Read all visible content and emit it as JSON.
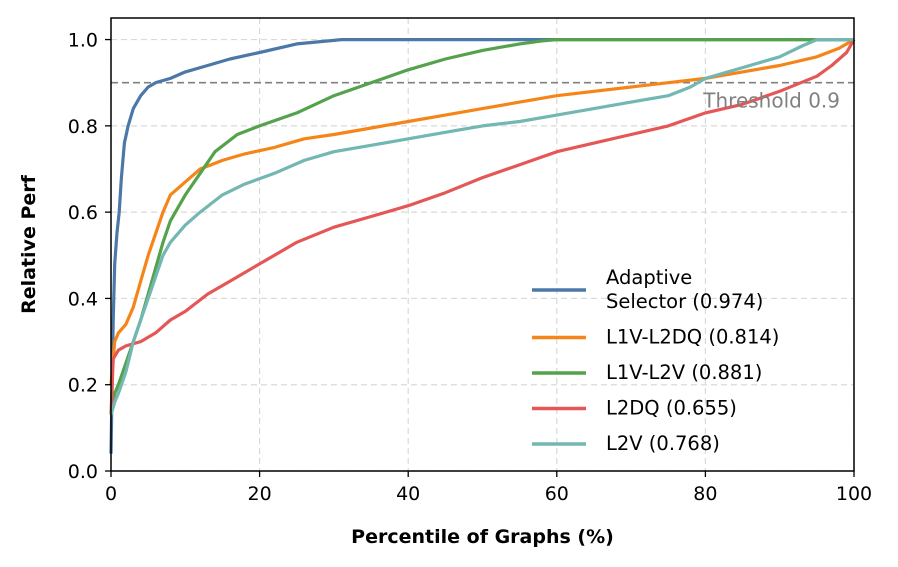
{
  "chart_data": {
    "type": "line",
    "title": "",
    "xlabel": "Percentile of Graphs (%)",
    "ylabel": "Relative Perf",
    "xlim": [
      0,
      100
    ],
    "ylim": [
      0,
      1.05
    ],
    "x_ticks": [
      0,
      20,
      40,
      60,
      80,
      100
    ],
    "x_tick_labels": [
      "0",
      "20",
      "40",
      "60",
      "80",
      "100"
    ],
    "y_ticks": [
      0,
      0.2,
      0.4,
      0.6,
      0.8,
      1.0
    ],
    "y_tick_labels": [
      "0.0",
      "0.2",
      "0.4",
      "0.6",
      "0.8",
      "1.0"
    ],
    "grid": true,
    "legend_position": "lower-right",
    "threshold": {
      "value": 0.9,
      "label": "Threshold 0.9",
      "color": "#808080"
    },
    "series": [
      {
        "name": "Adaptive Selector (0.974)",
        "legend_lines": [
          "Adaptive",
          "Selector (0.974)"
        ],
        "color": "#4c78a8",
        "x": [
          0,
          0.3,
          0.5,
          0.8,
          1.1,
          1.4,
          1.8,
          2.3,
          3,
          4,
          5,
          6,
          8,
          10,
          13,
          16,
          20,
          25,
          30,
          31,
          100
        ],
        "y": [
          0.04,
          0.35,
          0.48,
          0.55,
          0.6,
          0.68,
          0.76,
          0.8,
          0.84,
          0.87,
          0.89,
          0.9,
          0.91,
          0.925,
          0.94,
          0.955,
          0.97,
          0.99,
          0.998,
          1.0,
          1.0
        ]
      },
      {
        "name": "L1V-L2DQ (0.814)",
        "legend_lines": [
          "L1V-L2DQ (0.814)"
        ],
        "color": "#f58518",
        "x": [
          0,
          0.5,
          1,
          2,
          3,
          4,
          5,
          6,
          7,
          8,
          10,
          12,
          15,
          18,
          22,
          26,
          30,
          35,
          40,
          45,
          50,
          55,
          60,
          65,
          70,
          75,
          80,
          85,
          90,
          95,
          98,
          100
        ],
        "y": [
          0.2,
          0.3,
          0.32,
          0.34,
          0.38,
          0.44,
          0.5,
          0.55,
          0.6,
          0.64,
          0.67,
          0.7,
          0.72,
          0.735,
          0.75,
          0.77,
          0.78,
          0.795,
          0.81,
          0.825,
          0.84,
          0.855,
          0.87,
          0.88,
          0.89,
          0.9,
          0.91,
          0.925,
          0.94,
          0.96,
          0.98,
          1.0
        ]
      },
      {
        "name": "L1V-L2V (0.881)",
        "legend_lines": [
          "L1V-L2V (0.881)"
        ],
        "color": "#54a24b",
        "x": [
          0,
          0.5,
          1,
          2,
          3,
          4,
          5,
          6,
          7,
          8,
          9,
          10,
          12,
          14,
          17,
          20,
          25,
          30,
          35,
          40,
          45,
          50,
          55,
          58,
          60,
          100
        ],
        "y": [
          0.13,
          0.18,
          0.2,
          0.25,
          0.3,
          0.35,
          0.41,
          0.47,
          0.53,
          0.58,
          0.61,
          0.64,
          0.69,
          0.74,
          0.78,
          0.8,
          0.83,
          0.87,
          0.9,
          0.93,
          0.955,
          0.975,
          0.99,
          0.997,
          1.0,
          1.0
        ]
      },
      {
        "name": "L2DQ (0.655)",
        "legend_lines": [
          "L2DQ (0.655)"
        ],
        "color": "#e45756",
        "x": [
          0,
          0.3,
          1,
          2,
          4,
          6,
          8,
          10,
          13,
          16,
          20,
          25,
          30,
          35,
          40,
          45,
          50,
          55,
          60,
          65,
          70,
          75,
          80,
          85,
          90,
          95,
          97,
          99,
          100
        ],
        "y": [
          0.13,
          0.26,
          0.28,
          0.29,
          0.3,
          0.32,
          0.35,
          0.37,
          0.41,
          0.44,
          0.48,
          0.53,
          0.565,
          0.59,
          0.615,
          0.645,
          0.68,
          0.71,
          0.74,
          0.76,
          0.78,
          0.8,
          0.83,
          0.85,
          0.88,
          0.915,
          0.94,
          0.97,
          1.0
        ]
      },
      {
        "name": "L2V (0.768)",
        "legend_lines": [
          "L2V (0.768)"
        ],
        "color": "#72b7b2",
        "x": [
          0,
          0.5,
          1,
          2,
          3,
          4,
          5,
          6,
          7,
          8,
          10,
          12,
          15,
          18,
          22,
          26,
          30,
          35,
          40,
          45,
          50,
          55,
          60,
          65,
          70,
          75,
          78,
          80,
          85,
          90,
          93,
          95,
          100
        ],
        "y": [
          0.13,
          0.16,
          0.18,
          0.23,
          0.3,
          0.35,
          0.4,
          0.45,
          0.5,
          0.53,
          0.57,
          0.6,
          0.64,
          0.665,
          0.69,
          0.72,
          0.74,
          0.755,
          0.77,
          0.785,
          0.8,
          0.81,
          0.825,
          0.84,
          0.855,
          0.87,
          0.89,
          0.91,
          0.935,
          0.96,
          0.985,
          1.0,
          1.0
        ]
      }
    ]
  }
}
